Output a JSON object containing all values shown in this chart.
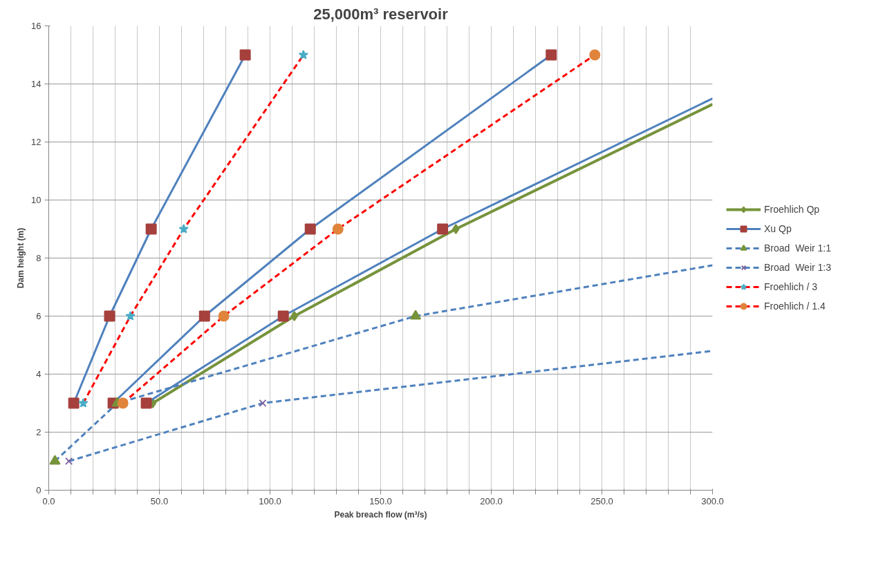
{
  "chart_data": {
    "type": "line",
    "title": "25,000m³ reservoir",
    "xlabel": "Peak breach flow (m³/s)",
    "ylabel": "Dam height (m)",
    "xlim": [
      0,
      300
    ],
    "ylim": [
      0,
      16
    ],
    "xticks": [
      {
        "value": 0,
        "label": "0.0"
      },
      {
        "value": 10,
        "label": null
      },
      {
        "value": 20,
        "label": null
      },
      {
        "value": 30,
        "label": null
      },
      {
        "value": 40,
        "label": null
      },
      {
        "value": 50,
        "label": "50.0"
      },
      {
        "value": 60,
        "label": null
      },
      {
        "value": 70,
        "label": null
      },
      {
        "value": 80,
        "label": null
      },
      {
        "value": 90,
        "label": null
      },
      {
        "value": 100,
        "label": "100.0"
      },
      {
        "value": 110,
        "label": null
      },
      {
        "value": 120,
        "label": null
      },
      {
        "value": 130,
        "label": null
      },
      {
        "value": 140,
        "label": null
      },
      {
        "value": 150,
        "label": "150.0"
      },
      {
        "value": 160,
        "label": null
      },
      {
        "value": 170,
        "label": null
      },
      {
        "value": 180,
        "label": null
      },
      {
        "value": 190,
        "label": null
      },
      {
        "value": 200,
        "label": "200.0"
      },
      {
        "value": 210,
        "label": null
      },
      {
        "value": 220,
        "label": null
      },
      {
        "value": 230,
        "label": null
      },
      {
        "value": 240,
        "label": null
      },
      {
        "value": 250,
        "label": "250.0"
      },
      {
        "value": 260,
        "label": null
      },
      {
        "value": 270,
        "label": null
      },
      {
        "value": 280,
        "label": null
      },
      {
        "value": 290,
        "label": null
      },
      {
        "value": 300,
        "label": "300.0"
      }
    ],
    "yticks": [
      0,
      2,
      4,
      6,
      8,
      10,
      12,
      14,
      16
    ],
    "grid": true,
    "legend": "right",
    "series": [
      {
        "name": "Froehlich Qp",
        "color": "#77933c",
        "marker": "diamond",
        "line_style": "solid",
        "x": [
          47,
          111,
          184,
          300
        ],
        "values": [
          3,
          6,
          9,
          13.3
        ],
        "colors": [
          "#77933c",
          "#77933c",
          "#77933c",
          null
        ]
      },
      {
        "name": "Xu Qp",
        "color": "#4f81bd",
        "marker": "square",
        "line_style": "solid",
        "x": [
          11.3,
          27.5,
          46.3,
          88.8
        ],
        "values": [
          3,
          6,
          9,
          15
        ],
        "colors": [
          "#a5403d",
          "#a5403d",
          "#a5403d",
          "#a5403d"
        ]
      },
      {
        "color": "#4f81bd",
        "marker": "square",
        "line_style": "solid",
        "x": [
          29.1,
          70.4,
          118.2,
          227.1
        ],
        "values": [
          3,
          6,
          9,
          15
        ],
        "colors": [
          "#a5403d",
          "#a5403d",
          "#a5403d",
          "#a5403d"
        ]
      },
      {
        "color": "#4f81bd",
        "marker": "square",
        "line_style": "solid",
        "x": [
          44.1,
          106,
          178,
          300
        ],
        "values": [
          3,
          6,
          9,
          13.5
        ],
        "colors": [
          "#a5403d",
          "#a5403d",
          "#a5403d",
          null
        ]
      },
      {
        "name": "Broad  Weir 1:1",
        "color": "#4f81bd",
        "marker": "triangle",
        "line_style": "dashed",
        "x": [
          2.8,
          31,
          165.8,
          300
        ],
        "values": [
          1,
          3,
          6,
          7.75
        ],
        "colors": [
          "#77933c",
          "#77933c",
          "#77933c",
          null
        ]
      },
      {
        "name": "Broad  Weir 1:3",
        "color": "#4f81bd",
        "marker": "cross",
        "line_style": "dashed",
        "x": [
          9.1,
          96.7,
          300
        ],
        "values": [
          1,
          3,
          4.8
        ],
        "colors": [
          "#7f64a0",
          "#7f64a0",
          null
        ]
      },
      {
        "name": "Froehlich / 3",
        "color": "#ff0000",
        "marker": "star",
        "line_style": "dashed",
        "x": [
          15.6,
          36.9,
          61,
          115.1
        ],
        "values": [
          3,
          6,
          9,
          15
        ],
        "colors": [
          "#4bacc6",
          "#4bacc6",
          "#4bacc6",
          "#4bacc6"
        ]
      },
      {
        "name": "Froehlich / 1.4",
        "color": "#ff0000",
        "marker": "circle",
        "line_style": "dashed",
        "x": [
          33.5,
          79.1,
          130.7,
          246.8
        ],
        "values": [
          3,
          6,
          9,
          15
        ],
        "colors": [
          "#e0843c",
          "#e0843c",
          "#e0843c",
          "#e0843c"
        ]
      }
    ]
  }
}
